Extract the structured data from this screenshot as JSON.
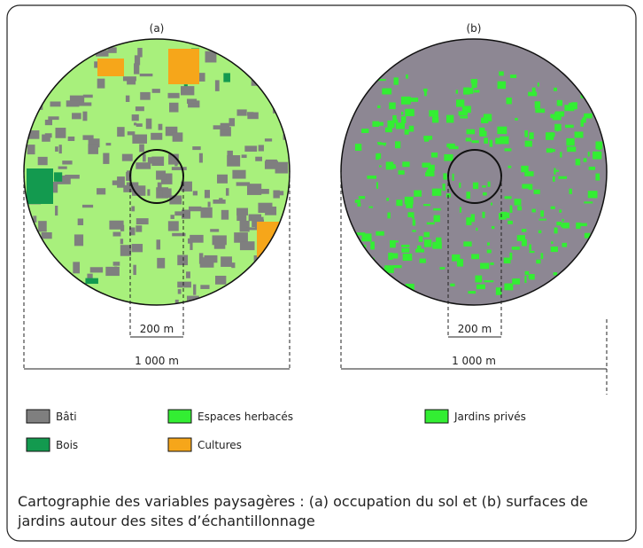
{
  "panels": [
    {
      "label": "(a)",
      "scale_small": "200 m",
      "scale_large": "1 000 m"
    },
    {
      "label": "(b)",
      "scale_small": "200 m",
      "scale_large": "1 000 m"
    }
  ],
  "legend": [
    {
      "label": "Bâti",
      "color": "#7f7f7f"
    },
    {
      "label": "Espaces herbacés",
      "color": "#33ee33"
    },
    {
      "label": "Jardins privés",
      "color": "#33ee33"
    },
    {
      "label": "Bois",
      "color": "#139a4f"
    },
    {
      "label": "Cultures",
      "color": "#f6a61a"
    }
  ],
  "caption": "Cartographie des variables paysagères : (a) occupation du sol et (b) surfaces de jardins autour des sites d’échantillonnage"
}
